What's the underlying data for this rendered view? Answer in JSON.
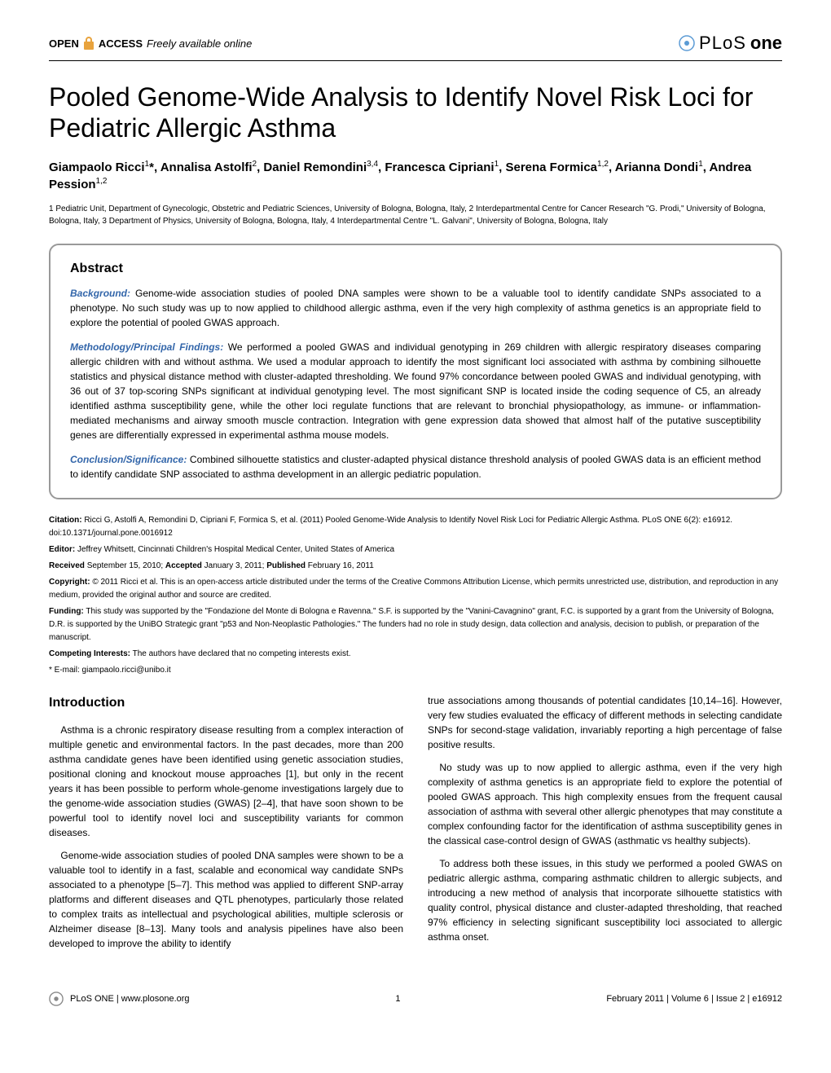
{
  "header": {
    "open_access_open": "OPEN",
    "open_access_access": "ACCESS",
    "open_access_text": "Freely available online",
    "journal_plos": "PLoS",
    "journal_one": "one"
  },
  "title": "Pooled Genome-Wide Analysis to Identify Novel Risk Loci for Pediatric Allergic Asthma",
  "authors_html": "Giampaolo Ricci<sup>1</sup>*, Annalisa Astolfi<sup>2</sup>, Daniel Remondini<sup>3,4</sup>, Francesca Cipriani<sup>1</sup>, Serena Formica<sup>1,2</sup>, Arianna Dondi<sup>1</sup>, Andrea Pession<sup>1,2</sup>",
  "affiliations": "1 Pediatric Unit, Department of Gynecologic, Obstetric and Pediatric Sciences, University of Bologna, Bologna, Italy, 2 Interdepartmental Centre for Cancer Research \"G. Prodi,\" University of Bologna, Bologna, Italy, 3 Department of Physics, University of Bologna, Bologna, Italy, 4 Interdepartmental Centre \"L. Galvani\", University of Bologna, Bologna, Italy",
  "abstract": {
    "heading": "Abstract",
    "background_label": "Background:",
    "background": " Genome-wide association studies of pooled DNA samples were shown to be a valuable tool to identify candidate SNPs associated to a phenotype. No such study was up to now applied to childhood allergic asthma, even if the very high complexity of asthma genetics is an appropriate field to explore the potential of pooled GWAS approach.",
    "methods_label": "Methodology/Principal Findings:",
    "methods": " We performed a pooled GWAS and individual genotyping in 269 children with allergic respiratory diseases comparing allergic children with and without asthma. We used a modular approach to identify the most significant loci associated with asthma by combining silhouette statistics and physical distance method with cluster-adapted thresholding. We found 97% concordance between pooled GWAS and individual genotyping, with 36 out of 37 top-scoring SNPs significant at individual genotyping level. The most significant SNP is located inside the coding sequence of C5, an already identified asthma susceptibility gene, while the other loci regulate functions that are relevant to bronchial physiopathology, as immune- or inflammation-mediated mechanisms and airway smooth muscle contraction. Integration with gene expression data showed that almost half of the putative susceptibility genes are differentially expressed in experimental asthma mouse models.",
    "conclusion_label": "Conclusion/Significance:",
    "conclusion": " Combined silhouette statistics and cluster-adapted physical distance threshold analysis of pooled GWAS data is an efficient method to identify candidate SNP associated to asthma development in an allergic pediatric population."
  },
  "meta": {
    "citation_label": "Citation:",
    "citation": " Ricci G, Astolfi A, Remondini D, Cipriani F, Formica S, et al. (2011) Pooled Genome-Wide Analysis to Identify Novel Risk Loci for Pediatric Allergic Asthma. PLoS ONE 6(2): e16912. doi:10.1371/journal.pone.0016912",
    "editor_label": "Editor:",
    "editor": " Jeffrey Whitsett, Cincinnati Children's Hospital Medical Center, United States of America",
    "received_label": "Received",
    "received": " September 15, 2010; ",
    "accepted_label": "Accepted",
    "accepted": " January 3, 2011; ",
    "published_label": "Published",
    "published": " February 16, 2011",
    "copyright_label": "Copyright:",
    "copyright": " © 2011 Ricci et al. This is an open-access article distributed under the terms of the Creative Commons Attribution License, which permits unrestricted use, distribution, and reproduction in any medium, provided the original author and source are credited.",
    "funding_label": "Funding:",
    "funding": " This study was supported by the \"Fondazione del Monte di Bologna e Ravenna.\" S.F. is supported by the \"Vanini-Cavagnino\" grant, F.C. is supported by a grant from the University of Bologna, D.R. is supported by the UniBO Strategic grant \"p53 and Non-Neoplastic Pathologies.\" The funders had no role in study design, data collection and analysis, decision to publish, or preparation of the manuscript.",
    "competing_label": "Competing Interests:",
    "competing": " The authors have declared that no competing interests exist.",
    "email": "* E-mail: giampaolo.ricci@unibo.it"
  },
  "intro": {
    "heading": "Introduction",
    "p1": "Asthma is a chronic respiratory disease resulting from a complex interaction of multiple genetic and environmental factors. In the past decades, more than 200 asthma candidate genes have been identified using genetic association studies, positional cloning and knockout mouse approaches [1], but only in the recent years it has been possible to perform whole-genome investigations largely due to the genome-wide association studies (GWAS) [2–4], that have soon shown to be powerful tool to identify novel loci and susceptibility variants for common diseases.",
    "p2": "Genome-wide association studies of pooled DNA samples were shown to be a valuable tool to identify in a fast, scalable and economical way candidate SNPs associated to a phenotype [5–7]. This method was applied to different SNP-array platforms and different diseases and QTL phenotypes, particularly those related to complex traits as intellectual and psychological abilities, multiple sclerosis or Alzheimer disease [8–13]. Many tools and analysis pipelines have also been developed to improve the ability to identify",
    "p3": "true associations among thousands of potential candidates [10,14–16]. However, very few studies evaluated the efficacy of different methods in selecting candidate SNPs for second-stage validation, invariably reporting a high percentage of false positive results.",
    "p4": "No study was up to now applied to allergic asthma, even if the very high complexity of asthma genetics is an appropriate field to explore the potential of pooled GWAS approach. This high complexity ensues from the frequent causal association of asthma with several other allergic phenotypes that may constitute a complex confounding factor for the identification of asthma susceptibility genes in the classical case-control design of GWAS (asthmatic vs healthy subjects).",
    "p5": "To address both these issues, in this study we performed a pooled GWAS on pediatric allergic asthma, comparing asthmatic children to allergic subjects, and introducing a new method of analysis that incorporate silhouette statistics with quality control, physical distance and cluster-adapted thresholding, that reached 97% efficiency in selecting significant susceptibility loci associated to allergic asthma onset."
  },
  "footer": {
    "site": "PLoS ONE | www.plosone.org",
    "page": "1",
    "issue": "February 2011 | Volume 6 | Issue 2 | e16912"
  }
}
